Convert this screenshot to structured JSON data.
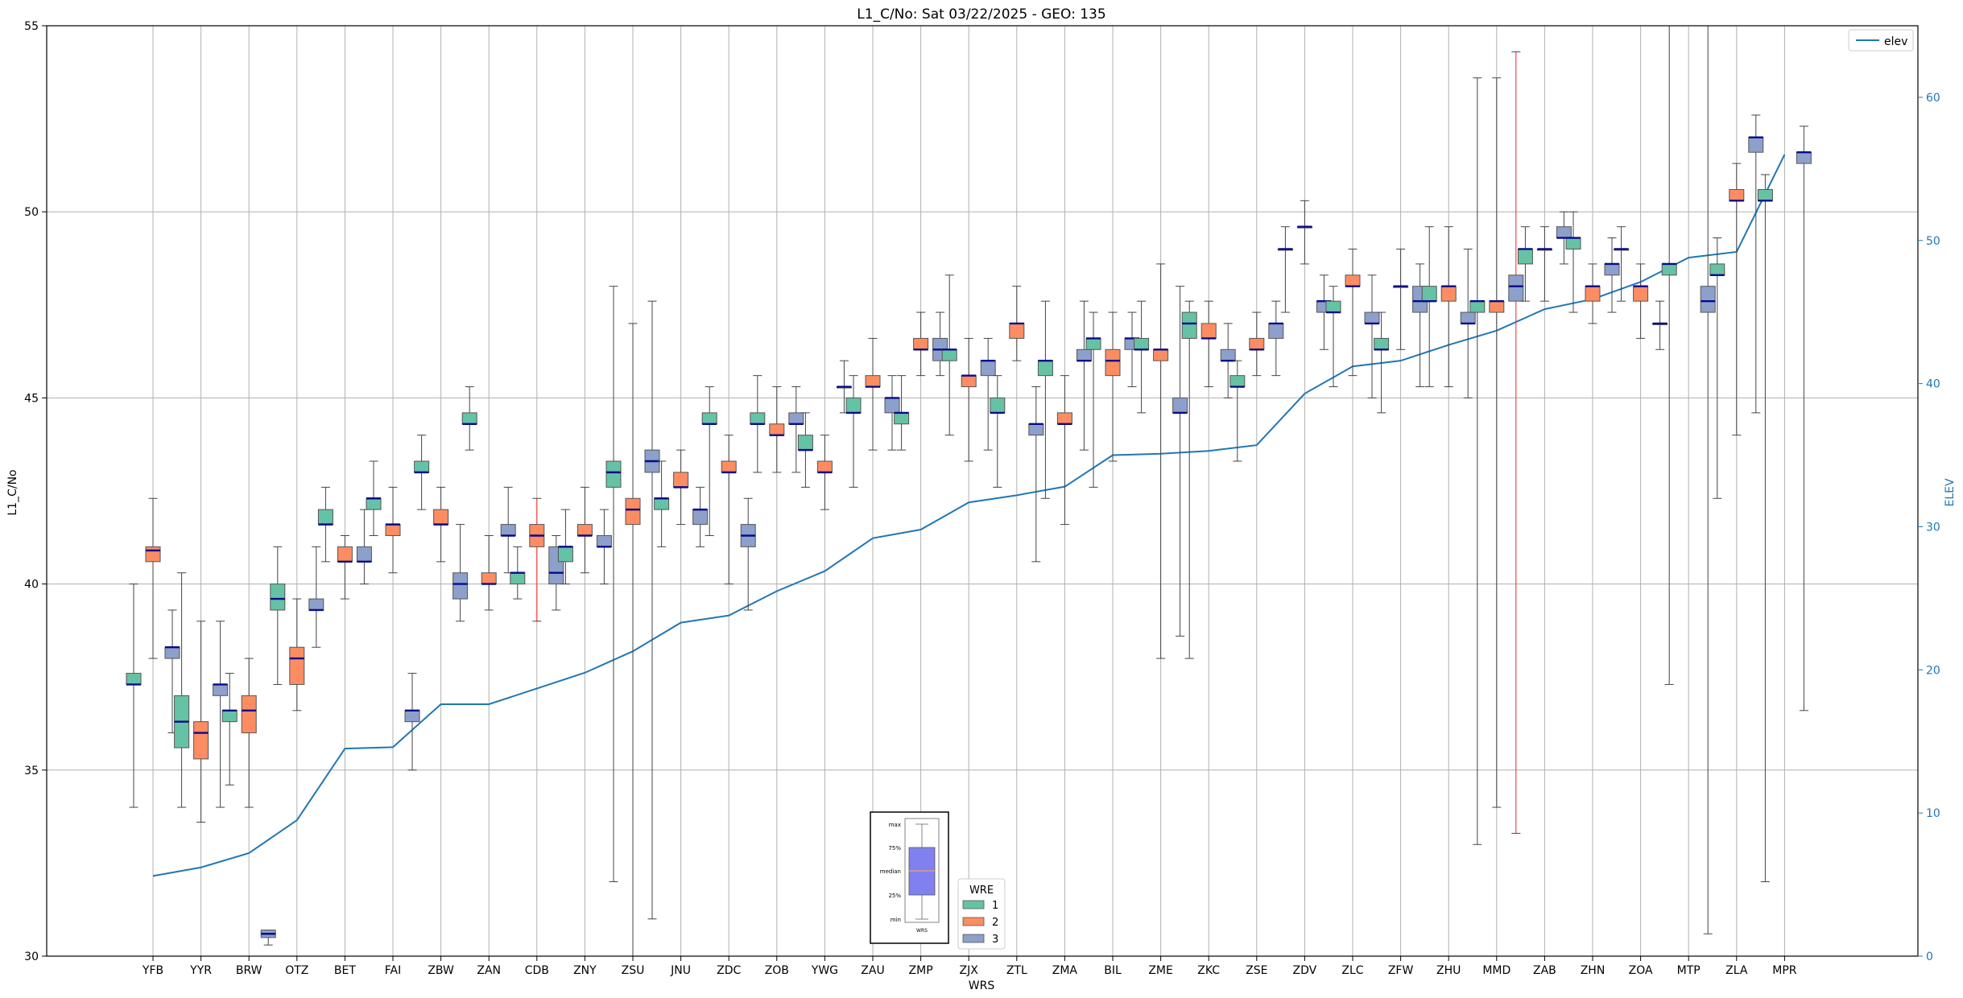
{
  "chart_data": {
    "type": "box",
    "title": "L1_C/No: Sat 03/22/2025 - GEO: 135",
    "xlabel": "WRS",
    "ylabel": "L1_C/No",
    "y2label": "ELEV",
    "ylim": [
      30,
      55
    ],
    "y2lim": [
      0,
      65
    ],
    "yticks": [
      30,
      35,
      40,
      45,
      50,
      55
    ],
    "y2ticks": [
      0,
      10,
      20,
      30,
      40,
      50,
      60
    ],
    "grid": true,
    "categories": [
      "YFB",
      "YYR",
      "BRW",
      "OTZ",
      "BET",
      "FAI",
      "ZBW",
      "ZAN",
      "CDB",
      "ZNY",
      "ZSU",
      "JNU",
      "ZDC",
      "ZOB",
      "YWG",
      "ZAU",
      "ZMP",
      "ZJX",
      "ZTL",
      "ZMA",
      "BIL",
      "ZME",
      "ZKC",
      "ZSE",
      "ZDV",
      "ZLC",
      "ZFW",
      "ZHU",
      "MMD",
      "ZAB",
      "ZHN",
      "ZOA",
      "MTP",
      "ZLA",
      "MPR"
    ],
    "wre_colors": {
      "1": "#66c2a5",
      "2": "#fc8d62",
      "3": "#8da0cb"
    },
    "boxes": [
      {
        "cat": "YFB",
        "wre": 1,
        "min": 34.0,
        "q1": 37.3,
        "med": 37.3,
        "q3": 37.6,
        "max": 40.0
      },
      {
        "cat": "YFB",
        "wre": 2,
        "min": 38.0,
        "q1": 40.6,
        "med": 40.9,
        "q3": 41.0,
        "max": 42.3
      },
      {
        "cat": "YFB",
        "wre": 3,
        "min": 36.0,
        "q1": 38.0,
        "med": 38.3,
        "q3": 38.3,
        "max": 39.3
      },
      {
        "cat": "YYR",
        "wre": 1,
        "min": 34.0,
        "q1": 35.6,
        "med": 36.3,
        "q3": 37.0,
        "max": 40.3
      },
      {
        "cat": "YYR",
        "wre": 2,
        "min": 33.6,
        "q1": 35.3,
        "med": 36.0,
        "q3": 36.3,
        "max": 39.0
      },
      {
        "cat": "YYR",
        "wre": 3,
        "min": 34.0,
        "q1": 37.0,
        "med": 37.3,
        "q3": 37.3,
        "max": 39.0
      },
      {
        "cat": "BRW",
        "wre": 1,
        "min": 34.6,
        "q1": 36.3,
        "med": 36.6,
        "q3": 36.6,
        "max": 37.6
      },
      {
        "cat": "BRW",
        "wre": 2,
        "min": 34.0,
        "q1": 36.0,
        "med": 36.6,
        "q3": 37.0,
        "max": 38.0
      },
      {
        "cat": "BRW",
        "wre": 3,
        "min": 30.3,
        "q1": 30.5,
        "med": 30.6,
        "q3": 30.7,
        "max": 30.7
      },
      {
        "cat": "OTZ",
        "wre": 1,
        "min": 37.3,
        "q1": 39.3,
        "med": 39.6,
        "q3": 40.0,
        "max": 41.0
      },
      {
        "cat": "OTZ",
        "wre": 2,
        "min": 36.6,
        "q1": 37.3,
        "med": 38.0,
        "q3": 38.3,
        "max": 39.6
      },
      {
        "cat": "OTZ",
        "wre": 3,
        "min": 38.3,
        "q1": 39.3,
        "med": 39.3,
        "q3": 39.6,
        "max": 41.0
      },
      {
        "cat": "BET",
        "wre": 1,
        "min": 40.6,
        "q1": 41.6,
        "med": 41.6,
        "q3": 42.0,
        "max": 42.6
      },
      {
        "cat": "BET",
        "wre": 2,
        "min": 39.6,
        "q1": 40.6,
        "med": 40.6,
        "q3": 41.0,
        "max": 41.3
      },
      {
        "cat": "BET",
        "wre": 3,
        "min": 40.0,
        "q1": 40.6,
        "med": 40.6,
        "q3": 41.0,
        "max": 42.0
      },
      {
        "cat": "FAI",
        "wre": 1,
        "min": 41.3,
        "q1": 42.0,
        "med": 42.3,
        "q3": 42.3,
        "max": 43.3
      },
      {
        "cat": "FAI",
        "wre": 2,
        "min": 40.3,
        "q1": 41.3,
        "med": 41.6,
        "q3": 41.6,
        "max": 42.6
      },
      {
        "cat": "FAI",
        "wre": 3,
        "min": 35.0,
        "q1": 36.3,
        "med": 36.6,
        "q3": 36.6,
        "max": 37.6
      },
      {
        "cat": "ZBW",
        "wre": 1,
        "min": 42.0,
        "q1": 43.0,
        "med": 43.0,
        "q3": 43.3,
        "max": 44.0
      },
      {
        "cat": "ZBW",
        "wre": 2,
        "min": 40.6,
        "q1": 41.6,
        "med": 41.6,
        "q3": 42.0,
        "max": 42.6
      },
      {
        "cat": "ZBW",
        "wre": 3,
        "min": 39.0,
        "q1": 39.6,
        "med": 40.0,
        "q3": 40.3,
        "max": 41.6
      },
      {
        "cat": "ZAN",
        "wre": 1,
        "min": 43.6,
        "q1": 44.3,
        "med": 44.3,
        "q3": 44.6,
        "max": 45.3
      },
      {
        "cat": "ZAN",
        "wre": 2,
        "min": 39.3,
        "q1": 40.0,
        "med": 40.0,
        "q3": 40.3,
        "max": 41.3
      },
      {
        "cat": "ZAN",
        "wre": 3,
        "min": 40.3,
        "q1": 41.3,
        "med": 41.3,
        "q3": 41.6,
        "max": 42.6
      },
      {
        "cat": "CDB",
        "wre": 1,
        "min": 39.6,
        "q1": 40.0,
        "med": 40.3,
        "q3": 40.3,
        "max": 41.0
      },
      {
        "cat": "CDB",
        "wre": 2,
        "min": 39.0,
        "q1": 41.0,
        "med": 41.3,
        "q3": 41.6,
        "max": 42.3,
        "red": true
      },
      {
        "cat": "CDB",
        "wre": 3,
        "min": 39.3,
        "q1": 40.0,
        "med": 40.3,
        "q3": 41.0,
        "max": 41.3
      },
      {
        "cat": "ZNY",
        "wre": 1,
        "min": 40.0,
        "q1": 40.6,
        "med": 41.0,
        "q3": 41.0,
        "max": 42.0
      },
      {
        "cat": "ZNY",
        "wre": 2,
        "min": 40.3,
        "q1": 41.3,
        "med": 41.3,
        "q3": 41.6,
        "max": 42.6
      },
      {
        "cat": "ZNY",
        "wre": 3,
        "min": 40.0,
        "q1": 41.0,
        "med": 41.0,
        "q3": 41.3,
        "max": 42.0
      },
      {
        "cat": "ZSU",
        "wre": 1,
        "min": 32.0,
        "q1": 42.6,
        "med": 43.0,
        "q3": 43.3,
        "max": 48.0
      },
      {
        "cat": "ZSU",
        "wre": 2,
        "min": 30.0,
        "q1": 41.6,
        "med": 42.0,
        "q3": 42.3,
        "max": 47.0
      },
      {
        "cat": "ZSU",
        "wre": 3,
        "min": 31.0,
        "q1": 43.0,
        "med": 43.3,
        "q3": 43.6,
        "max": 47.6
      },
      {
        "cat": "JNU",
        "wre": 1,
        "min": 41.0,
        "q1": 42.0,
        "med": 42.3,
        "q3": 42.3,
        "max": 43.3
      },
      {
        "cat": "JNU",
        "wre": 2,
        "min": 41.6,
        "q1": 42.6,
        "med": 42.6,
        "q3": 43.0,
        "max": 43.6
      },
      {
        "cat": "JNU",
        "wre": 3,
        "min": 41.0,
        "q1": 41.6,
        "med": 42.0,
        "q3": 42.0,
        "max": 42.6
      },
      {
        "cat": "ZDC",
        "wre": 1,
        "min": 41.3,
        "q1": 44.3,
        "med": 44.3,
        "q3": 44.6,
        "max": 45.3
      },
      {
        "cat": "ZDC",
        "wre": 2,
        "min": 40.0,
        "q1": 43.0,
        "med": 43.0,
        "q3": 43.3,
        "max": 44.0
      },
      {
        "cat": "ZDC",
        "wre": 3,
        "min": 39.3,
        "q1": 41.0,
        "med": 41.3,
        "q3": 41.6,
        "max": 42.3
      },
      {
        "cat": "ZOB",
        "wre": 1,
        "min": 43.0,
        "q1": 44.3,
        "med": 44.3,
        "q3": 44.6,
        "max": 45.6
      },
      {
        "cat": "ZOB",
        "wre": 2,
        "min": 43.0,
        "q1": 44.0,
        "med": 44.0,
        "q3": 44.3,
        "max": 45.3
      },
      {
        "cat": "ZOB",
        "wre": 3,
        "min": 43.0,
        "q1": 44.3,
        "med": 44.3,
        "q3": 44.6,
        "max": 45.3
      },
      {
        "cat": "YWG",
        "wre": 1,
        "min": 42.6,
        "q1": 43.6,
        "med": 43.6,
        "q3": 44.0,
        "max": 44.6
      },
      {
        "cat": "YWG",
        "wre": 2,
        "min": 42.0,
        "q1": 43.0,
        "med": 43.0,
        "q3": 43.3,
        "max": 44.0
      },
      {
        "cat": "YWG",
        "wre": 3,
        "min": 44.6,
        "q1": 45.3,
        "med": 45.3,
        "q3": 45.3,
        "max": 46.0
      },
      {
        "cat": "ZAU",
        "wre": 1,
        "min": 42.6,
        "q1": 44.6,
        "med": 44.6,
        "q3": 45.0,
        "max": 45.6
      },
      {
        "cat": "ZAU",
        "wre": 2,
        "min": 43.6,
        "q1": 45.3,
        "med": 45.3,
        "q3": 45.6,
        "max": 46.6
      },
      {
        "cat": "ZAU",
        "wre": 3,
        "min": 43.6,
        "q1": 44.6,
        "med": 45.0,
        "q3": 45.0,
        "max": 45.6
      },
      {
        "cat": "ZMP",
        "wre": 1,
        "min": 43.6,
        "q1": 44.3,
        "med": 44.6,
        "q3": 44.6,
        "max": 45.6
      },
      {
        "cat": "ZMP",
        "wre": 2,
        "min": 45.6,
        "q1": 46.3,
        "med": 46.3,
        "q3": 46.6,
        "max": 47.3
      },
      {
        "cat": "ZMP",
        "wre": 3,
        "min": 45.6,
        "q1": 46.0,
        "med": 46.3,
        "q3": 46.6,
        "max": 47.3
      },
      {
        "cat": "ZJX",
        "wre": 1,
        "min": 44.0,
        "q1": 46.0,
        "med": 46.3,
        "q3": 46.3,
        "max": 48.3
      },
      {
        "cat": "ZJX",
        "wre": 2,
        "min": 43.3,
        "q1": 45.3,
        "med": 45.6,
        "q3": 45.6,
        "max": 46.6
      },
      {
        "cat": "ZJX",
        "wre": 3,
        "min": 43.6,
        "q1": 45.6,
        "med": 46.0,
        "q3": 46.0,
        "max": 46.6
      },
      {
        "cat": "ZTL",
        "wre": 1,
        "min": 42.6,
        "q1": 44.6,
        "med": 44.6,
        "q3": 45.0,
        "max": 45.6
      },
      {
        "cat": "ZTL",
        "wre": 2,
        "min": 46.0,
        "q1": 46.6,
        "med": 47.0,
        "q3": 47.0,
        "max": 48.0
      },
      {
        "cat": "ZTL",
        "wre": 3,
        "min": 40.6,
        "q1": 44.0,
        "med": 44.3,
        "q3": 44.3,
        "max": 45.3
      },
      {
        "cat": "ZMA",
        "wre": 1,
        "min": 42.3,
        "q1": 45.6,
        "med": 46.0,
        "q3": 46.0,
        "max": 47.6
      },
      {
        "cat": "ZMA",
        "wre": 2,
        "min": 41.6,
        "q1": 44.3,
        "med": 44.3,
        "q3": 44.6,
        "max": 45.6
      },
      {
        "cat": "ZMA",
        "wre": 3,
        "min": 43.6,
        "q1": 46.0,
        "med": 46.0,
        "q3": 46.3,
        "max": 47.6
      },
      {
        "cat": "BIL",
        "wre": 1,
        "min": 42.6,
        "q1": 46.3,
        "med": 46.6,
        "q3": 46.6,
        "max": 47.3
      },
      {
        "cat": "BIL",
        "wre": 2,
        "min": 43.3,
        "q1": 45.6,
        "med": 46.0,
        "q3": 46.3,
        "max": 47.3
      },
      {
        "cat": "BIL",
        "wre": 3,
        "min": 45.3,
        "q1": 46.3,
        "med": 46.6,
        "q3": 46.6,
        "max": 47.3
      },
      {
        "cat": "ZME",
        "wre": 1,
        "min": 44.6,
        "q1": 46.3,
        "med": 46.3,
        "q3": 46.6,
        "max": 47.6
      },
      {
        "cat": "ZME",
        "wre": 2,
        "min": 38.0,
        "q1": 46.0,
        "med": 46.3,
        "q3": 46.3,
        "max": 48.6
      },
      {
        "cat": "ZME",
        "wre": 3,
        "min": 38.6,
        "q1": 44.6,
        "med": 44.6,
        "q3": 45.0,
        "max": 48.0
      },
      {
        "cat": "ZKC",
        "wre": 1,
        "min": 38.0,
        "q1": 46.6,
        "med": 47.0,
        "q3": 47.3,
        "max": 47.6
      },
      {
        "cat": "ZKC",
        "wre": 2,
        "min": 45.3,
        "q1": 46.6,
        "med": 46.6,
        "q3": 47.0,
        "max": 47.6
      },
      {
        "cat": "ZKC",
        "wre": 3,
        "min": 45.0,
        "q1": 46.0,
        "med": 46.0,
        "q3": 46.3,
        "max": 47.0
      },
      {
        "cat": "ZSE",
        "wre": 1,
        "min": 43.3,
        "q1": 45.3,
        "med": 45.3,
        "q3": 45.6,
        "max": 46.0
      },
      {
        "cat": "ZSE",
        "wre": 2,
        "min": 45.6,
        "q1": 46.3,
        "med": 46.3,
        "q3": 46.6,
        "max": 47.3
      },
      {
        "cat": "ZSE",
        "wre": 3,
        "min": 45.6,
        "q1": 46.6,
        "med": 47.0,
        "q3": 47.0,
        "max": 47.6
      },
      {
        "cat": "ZDV",
        "wre": 1,
        "min": 47.3,
        "q1": 49.0,
        "med": 49.0,
        "q3": 49.0,
        "max": 49.6
      },
      {
        "cat": "ZDV",
        "wre": 2,
        "min": 48.6,
        "q1": 49.6,
        "med": 49.6,
        "q3": 49.6,
        "max": 50.3
      },
      {
        "cat": "ZDV",
        "wre": 3,
        "min": 46.3,
        "q1": 47.3,
        "med": 47.6,
        "q3": 47.6,
        "max": 48.3
      },
      {
        "cat": "ZLC",
        "wre": 1,
        "min": 45.3,
        "q1": 47.3,
        "med": 47.3,
        "q3": 47.6,
        "max": 48.0
      },
      {
        "cat": "ZLC",
        "wre": 2,
        "min": 45.6,
        "q1": 48.0,
        "med": 48.0,
        "q3": 48.3,
        "max": 49.0
      },
      {
        "cat": "ZLC",
        "wre": 3,
        "min": 45.0,
        "q1": 47.0,
        "med": 47.0,
        "q3": 47.3,
        "max": 48.3
      },
      {
        "cat": "ZFW",
        "wre": 1,
        "min": 44.6,
        "q1": 46.3,
        "med": 46.3,
        "q3": 46.6,
        "max": 47.3
      },
      {
        "cat": "ZFW",
        "wre": 2,
        "min": 46.3,
        "q1": 48.0,
        "med": 48.0,
        "q3": 48.0,
        "max": 49.0
      },
      {
        "cat": "ZFW",
        "wre": 3,
        "min": 45.3,
        "q1": 47.3,
        "med": 47.6,
        "q3": 48.0,
        "max": 48.6
      },
      {
        "cat": "ZHU",
        "wre": 1,
        "min": 45.3,
        "q1": 47.6,
        "med": 47.6,
        "q3": 48.0,
        "max": 49.6
      },
      {
        "cat": "ZHU",
        "wre": 2,
        "min": 45.3,
        "q1": 47.6,
        "med": 48.0,
        "q3": 48.0,
        "max": 49.6
      },
      {
        "cat": "ZHU",
        "wre": 3,
        "min": 45.0,
        "q1": 47.0,
        "med": 47.0,
        "q3": 47.3,
        "max": 49.0
      },
      {
        "cat": "MMD",
        "wre": 1,
        "min": 33.0,
        "q1": 47.3,
        "med": 47.6,
        "q3": 47.6,
        "max": 53.6
      },
      {
        "cat": "MMD",
        "wre": 2,
        "min": 34.0,
        "q1": 47.3,
        "med": 47.6,
        "q3": 47.6,
        "max": 53.6
      },
      {
        "cat": "MMD",
        "wre": 3,
        "min": 33.3,
        "q1": 47.6,
        "med": 48.0,
        "q3": 48.3,
        "max": 54.3,
        "red": true
      },
      {
        "cat": "ZAB",
        "wre": 1,
        "min": 47.6,
        "q1": 48.6,
        "med": 49.0,
        "q3": 49.0,
        "max": 49.6
      },
      {
        "cat": "ZAB",
        "wre": 2,
        "min": 47.6,
        "q1": 49.0,
        "med": 49.0,
        "q3": 49.0,
        "max": 49.6
      },
      {
        "cat": "ZAB",
        "wre": 3,
        "min": 48.6,
        "q1": 49.3,
        "med": 49.3,
        "q3": 49.6,
        "max": 50.0
      },
      {
        "cat": "ZHN",
        "wre": 1,
        "min": 47.3,
        "q1": 49.0,
        "med": 49.3,
        "q3": 49.3,
        "max": 50.0
      },
      {
        "cat": "ZHN",
        "wre": 2,
        "min": 47.0,
        "q1": 47.6,
        "med": 48.0,
        "q3": 48.0,
        "max": 48.6
      },
      {
        "cat": "ZHN",
        "wre": 3,
        "min": 47.3,
        "q1": 48.3,
        "med": 48.6,
        "q3": 48.6,
        "max": 49.3
      },
      {
        "cat": "ZOA",
        "wre": 1,
        "min": 47.6,
        "q1": 49.0,
        "med": 49.0,
        "q3": 49.0,
        "max": 49.6
      },
      {
        "cat": "ZOA",
        "wre": 2,
        "min": 46.6,
        "q1": 47.6,
        "med": 48.0,
        "q3": 48.0,
        "max": 48.6
      },
      {
        "cat": "ZOA",
        "wre": 3,
        "min": 46.3,
        "q1": 47.0,
        "med": 47.0,
        "q3": 47.0,
        "max": 47.6
      },
      {
        "cat": "MTP",
        "wre": 1,
        "min": 37.3,
        "q1": 48.3,
        "med": 48.6,
        "q3": 48.6,
        "max": 55.0
      },
      {
        "cat": "MTP",
        "wre": 3,
        "min": 30.6,
        "q1": 47.3,
        "med": 47.6,
        "q3": 48.0,
        "max": 55.0
      },
      {
        "cat": "ZLA",
        "wre": 1,
        "min": 42.3,
        "q1": 48.3,
        "med": 48.3,
        "q3": 48.6,
        "max": 49.3
      },
      {
        "cat": "ZLA",
        "wre": 2,
        "min": 44.0,
        "q1": 50.3,
        "med": 50.3,
        "q3": 50.6,
        "max": 51.3
      },
      {
        "cat": "ZLA",
        "wre": 3,
        "min": 44.6,
        "q1": 51.6,
        "med": 52.0,
        "q3": 52.0,
        "max": 52.6
      },
      {
        "cat": "MPR",
        "wre": 1,
        "min": 32.0,
        "q1": 50.3,
        "med": 50.3,
        "q3": 50.6,
        "max": 51.0
      },
      {
        "cat": "MPR",
        "wre": 3,
        "min": 36.6,
        "q1": 51.3,
        "med": 51.6,
        "q3": 51.6,
        "max": 52.3
      }
    ],
    "elev_line": {
      "name": "elev",
      "color": "#1f77b4",
      "values": [
        5.6,
        6.2,
        7.2,
        9.5,
        14.5,
        14.6,
        17.6,
        17.6,
        18.7,
        19.8,
        21.3,
        23.3,
        23.8,
        25.5,
        26.9,
        29.2,
        29.8,
        31.7,
        32.2,
        32.8,
        35.0,
        35.1,
        35.3,
        35.7,
        39.3,
        41.2,
        41.6,
        42.7,
        43.7,
        45.2,
        45.9,
        47.1,
        48.8,
        49.2,
        56.0
      ]
    },
    "legend_elev": {
      "label": "elev",
      "placement": "top-right"
    },
    "legend_wre": {
      "title": "WRE",
      "entries": [
        "1",
        "2",
        "3"
      ],
      "placement": "bottom-center"
    },
    "inset_key": {
      "labels": [
        "max",
        "75%",
        "median",
        "25%",
        "min"
      ],
      "xlabel": "WRS"
    }
  }
}
